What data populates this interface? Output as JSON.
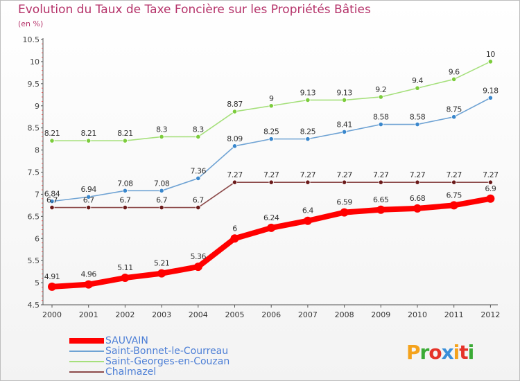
{
  "title": "Evolution du Taux de Taxe Foncière sur les Propriétés Bâties",
  "subtitle": "(en %)",
  "logo": {
    "letters": [
      "P",
      "r",
      "o",
      "x",
      "i",
      "t",
      "i"
    ],
    "colors": [
      "#f4a21c",
      "#3aaa35",
      "#e53329",
      "#3a8fd9",
      "#f4a21c",
      "#e53329",
      "#3aaa35"
    ]
  },
  "chart_data": {
    "type": "line",
    "title": "Evolution du Taux de Taxe Foncière sur les Propriétés Bâties",
    "ylabel": "(en %)",
    "xlabel": "",
    "x": [
      "2000",
      "2001",
      "2002",
      "2003",
      "2004",
      "2005",
      "2006",
      "2007",
      "2008",
      "2009",
      "2010",
      "2011",
      "2012"
    ],
    "ylim": [
      4.5,
      10.5
    ],
    "yticks": [
      "4.5",
      "5",
      "5.5",
      "6",
      "6.5",
      "7",
      "7.5",
      "8",
      "8.5",
      "9",
      "9.5",
      "10",
      "10.5"
    ],
    "grid": false,
    "legend": "bottom-left",
    "series": [
      {
        "name": "Saint-Georges-en-Couzan",
        "color": "#a6e07c",
        "marker": "#7ccc3c",
        "values": [
          8.21,
          8.21,
          8.21,
          8.3,
          8.3,
          8.87,
          9,
          9.13,
          9.13,
          9.2,
          9.4,
          9.6,
          10
        ],
        "labels": [
          "8.21",
          "8.21",
          "8.21",
          "8.3",
          "8.3",
          "8.87",
          "9",
          "9.13",
          "9.13",
          "9.2",
          "9.4",
          "9.6",
          "10"
        ]
      },
      {
        "name": "Saint-Bonnet-le-Courreau",
        "color": "#6fa3d4",
        "marker": "#3a87cc",
        "values": [
          6.84,
          6.94,
          7.08,
          7.08,
          7.36,
          8.09,
          8.25,
          8.25,
          8.41,
          8.58,
          8.58,
          8.75,
          9.18
        ],
        "labels": [
          "6.84",
          "6.94",
          "7.08",
          "7.08",
          "7.36",
          "8.09",
          "8.25",
          "8.25",
          "8.41",
          "8.58",
          "8.58",
          "8.75",
          "9.18"
        ]
      },
      {
        "name": "Chalmazel",
        "color": "#8c4a4a",
        "marker": "#6b1a1a",
        "values": [
          6.7,
          6.7,
          6.7,
          6.7,
          6.7,
          7.27,
          7.27,
          7.27,
          7.27,
          7.27,
          7.27,
          7.27,
          7.27
        ],
        "labels": [
          "6.7",
          "6.7",
          "6.7",
          "6.7",
          "6.7",
          "7.27",
          "7.27",
          "7.27",
          "7.27",
          "7.27",
          "7.27",
          "7.27",
          "7.27"
        ]
      },
      {
        "name": "SAUVAIN",
        "color": "#ff0000",
        "marker": "#ff0000",
        "values": [
          4.91,
          4.96,
          5.11,
          5.21,
          5.36,
          6,
          6.24,
          6.4,
          6.59,
          6.65,
          6.68,
          6.75,
          6.9
        ],
        "labels": [
          "4.91",
          "4.96",
          "5.11",
          "5.21",
          "5.36",
          "6",
          "6.24",
          "6.4",
          "6.59",
          "6.65",
          "6.68",
          "6.75",
          "6.9"
        ]
      }
    ],
    "legend_order": [
      3,
      1,
      0,
      2
    ]
  }
}
